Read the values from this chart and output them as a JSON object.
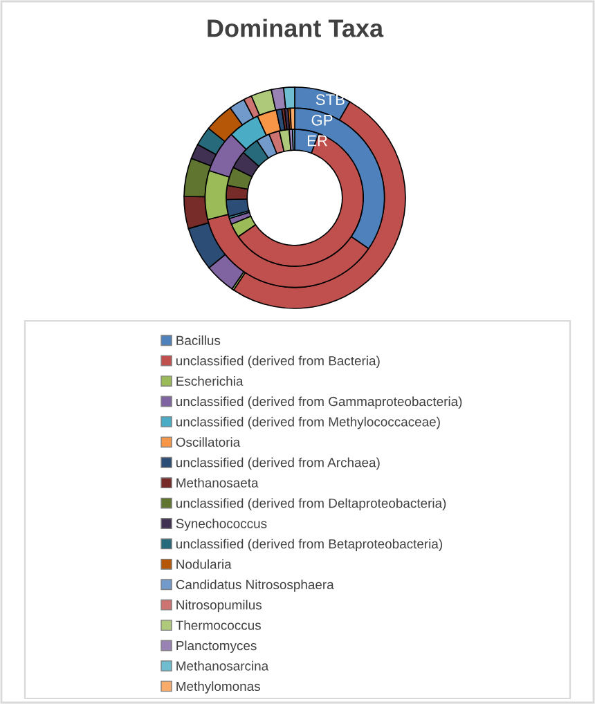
{
  "chart_data": {
    "type": "donut",
    "title": "Dominant Taxa",
    "legend": "bottom",
    "categories": [
      "Bacillus",
      "unclassified (derived from Bacteria)",
      "Escherichia",
      "unclassified (derived from Gammaproteobacteria)",
      "unclassified (derived from Methylococcaceae)",
      "Oscillatoria",
      "unclassified (derived from Archaea)",
      "Methanosaeta",
      "unclassified (derived from Deltaproteobacteria)",
      "Synechococcus",
      "unclassified (derived from Betaproteobacteria)",
      "Nodularia",
      "Candidatus Nitrososphaera",
      "Nitrosopumilus",
      "Thermococcus",
      "Planctomyces",
      "Methanosarcina",
      "Methylomonas"
    ],
    "colors": [
      "#4f81bd",
      "#c0504d",
      "#9bbb59",
      "#8064a2",
      "#4bacc6",
      "#f79646",
      "#2c4d75",
      "#772c2a",
      "#5f7530",
      "#403152",
      "#276a7c",
      "#b65708",
      "#729aca",
      "#cd7371",
      "#afc97a",
      "#9983b5",
      "#6fbdd1",
      "#f9ab6b"
    ],
    "series": [
      {
        "name": "STB",
        "values": [
          8.3,
          51.0,
          0.3,
          4.5,
          0,
          0,
          6.4,
          4.7,
          5.6,
          2.2,
          2.8,
          4.3,
          2.3,
          1.2,
          3.0,
          1.8,
          1.6,
          0
        ]
      },
      {
        "name": "GP",
        "values": [
          34.6,
          36.5,
          8.8,
          7.6,
          5.7,
          3.5,
          1.0,
          0.5,
          0,
          0.6,
          0,
          0.4,
          0,
          0,
          0,
          0,
          0,
          0.8
        ]
      },
      {
        "name": "ER",
        "values": [
          5.7,
          59.7,
          3.3,
          1.4,
          0.5,
          0,
          4.0,
          3.3,
          4.4,
          4.2,
          4.2,
          0,
          3.2,
          2.5,
          2.3,
          0.8,
          0.5,
          0
        ]
      }
    ]
  }
}
